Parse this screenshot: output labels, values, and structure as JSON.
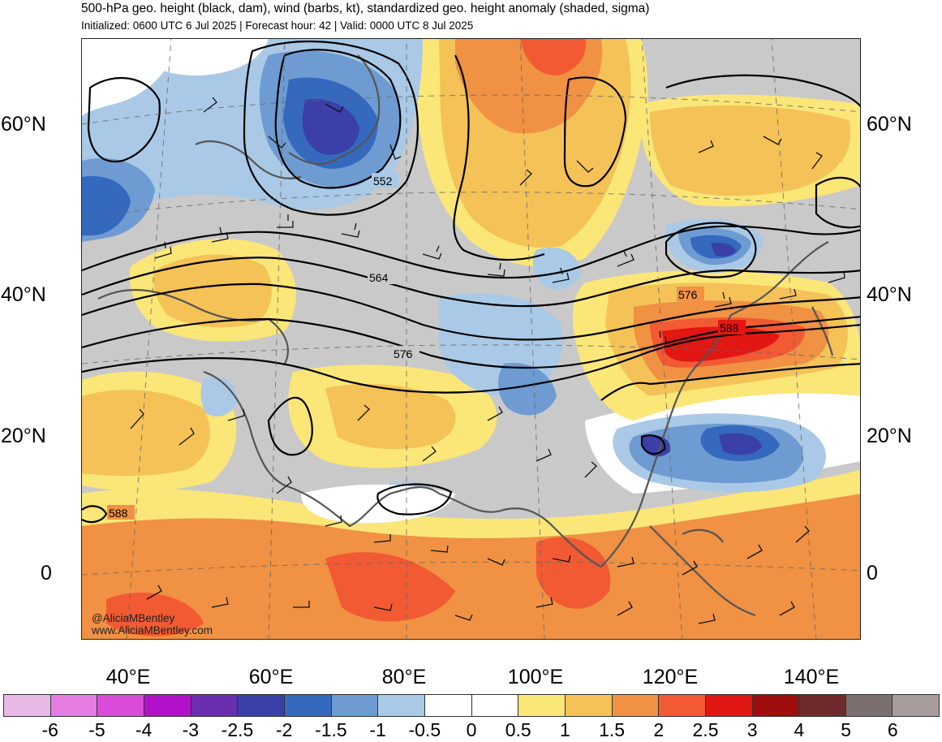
{
  "header": {
    "title": "500-hPa geo. height (black, dam), wind (barbs, kt), standardized geo. height anomaly (shaded, sigma)",
    "subtitle": "Initialized: 0600 UTC 6 Jul 2025 | Forecast hour: 42 | Valid: 0000 UTC 8 Jul 2025"
  },
  "map": {
    "lat_labels_left": [
      "60°N",
      "40°N",
      "20°N",
      "0"
    ],
    "lat_labels_right": [
      "60°N",
      "40°N",
      "20°N",
      "0"
    ],
    "lon_labels": [
      "40°E",
      "60°E",
      "80°E",
      "100°E",
      "120°E",
      "140°E"
    ],
    "contour_labels": [
      "552",
      "564",
      "576",
      "588",
      "576",
      "588"
    ],
    "credit_handle": "@AliciaMBentley",
    "credit_url": "www.AliciaMBentley.com"
  },
  "colorbar": {
    "ticks": [
      "-6",
      "-5",
      "-4",
      "-3",
      "-2.5",
      "-2",
      "-1.5",
      "-1",
      "-0.5",
      "0",
      "0.5",
      "1",
      "1.5",
      "2",
      "2.5",
      "3",
      "4",
      "5",
      "6"
    ],
    "colors": [
      "#e9b9e6",
      "#e57de2",
      "#d94bd9",
      "#b011c9",
      "#6a2fb0",
      "#3b3fa8",
      "#3569be",
      "#6e9bd1",
      "#a9c9e6",
      "#ffffff",
      "#ffffff",
      "#fbe678",
      "#f4c257",
      "#f09143",
      "#f15a33",
      "#e21613",
      "#a00d0d",
      "#6f2b2b",
      "#7b6f6f",
      "#a89d9d"
    ]
  }
}
